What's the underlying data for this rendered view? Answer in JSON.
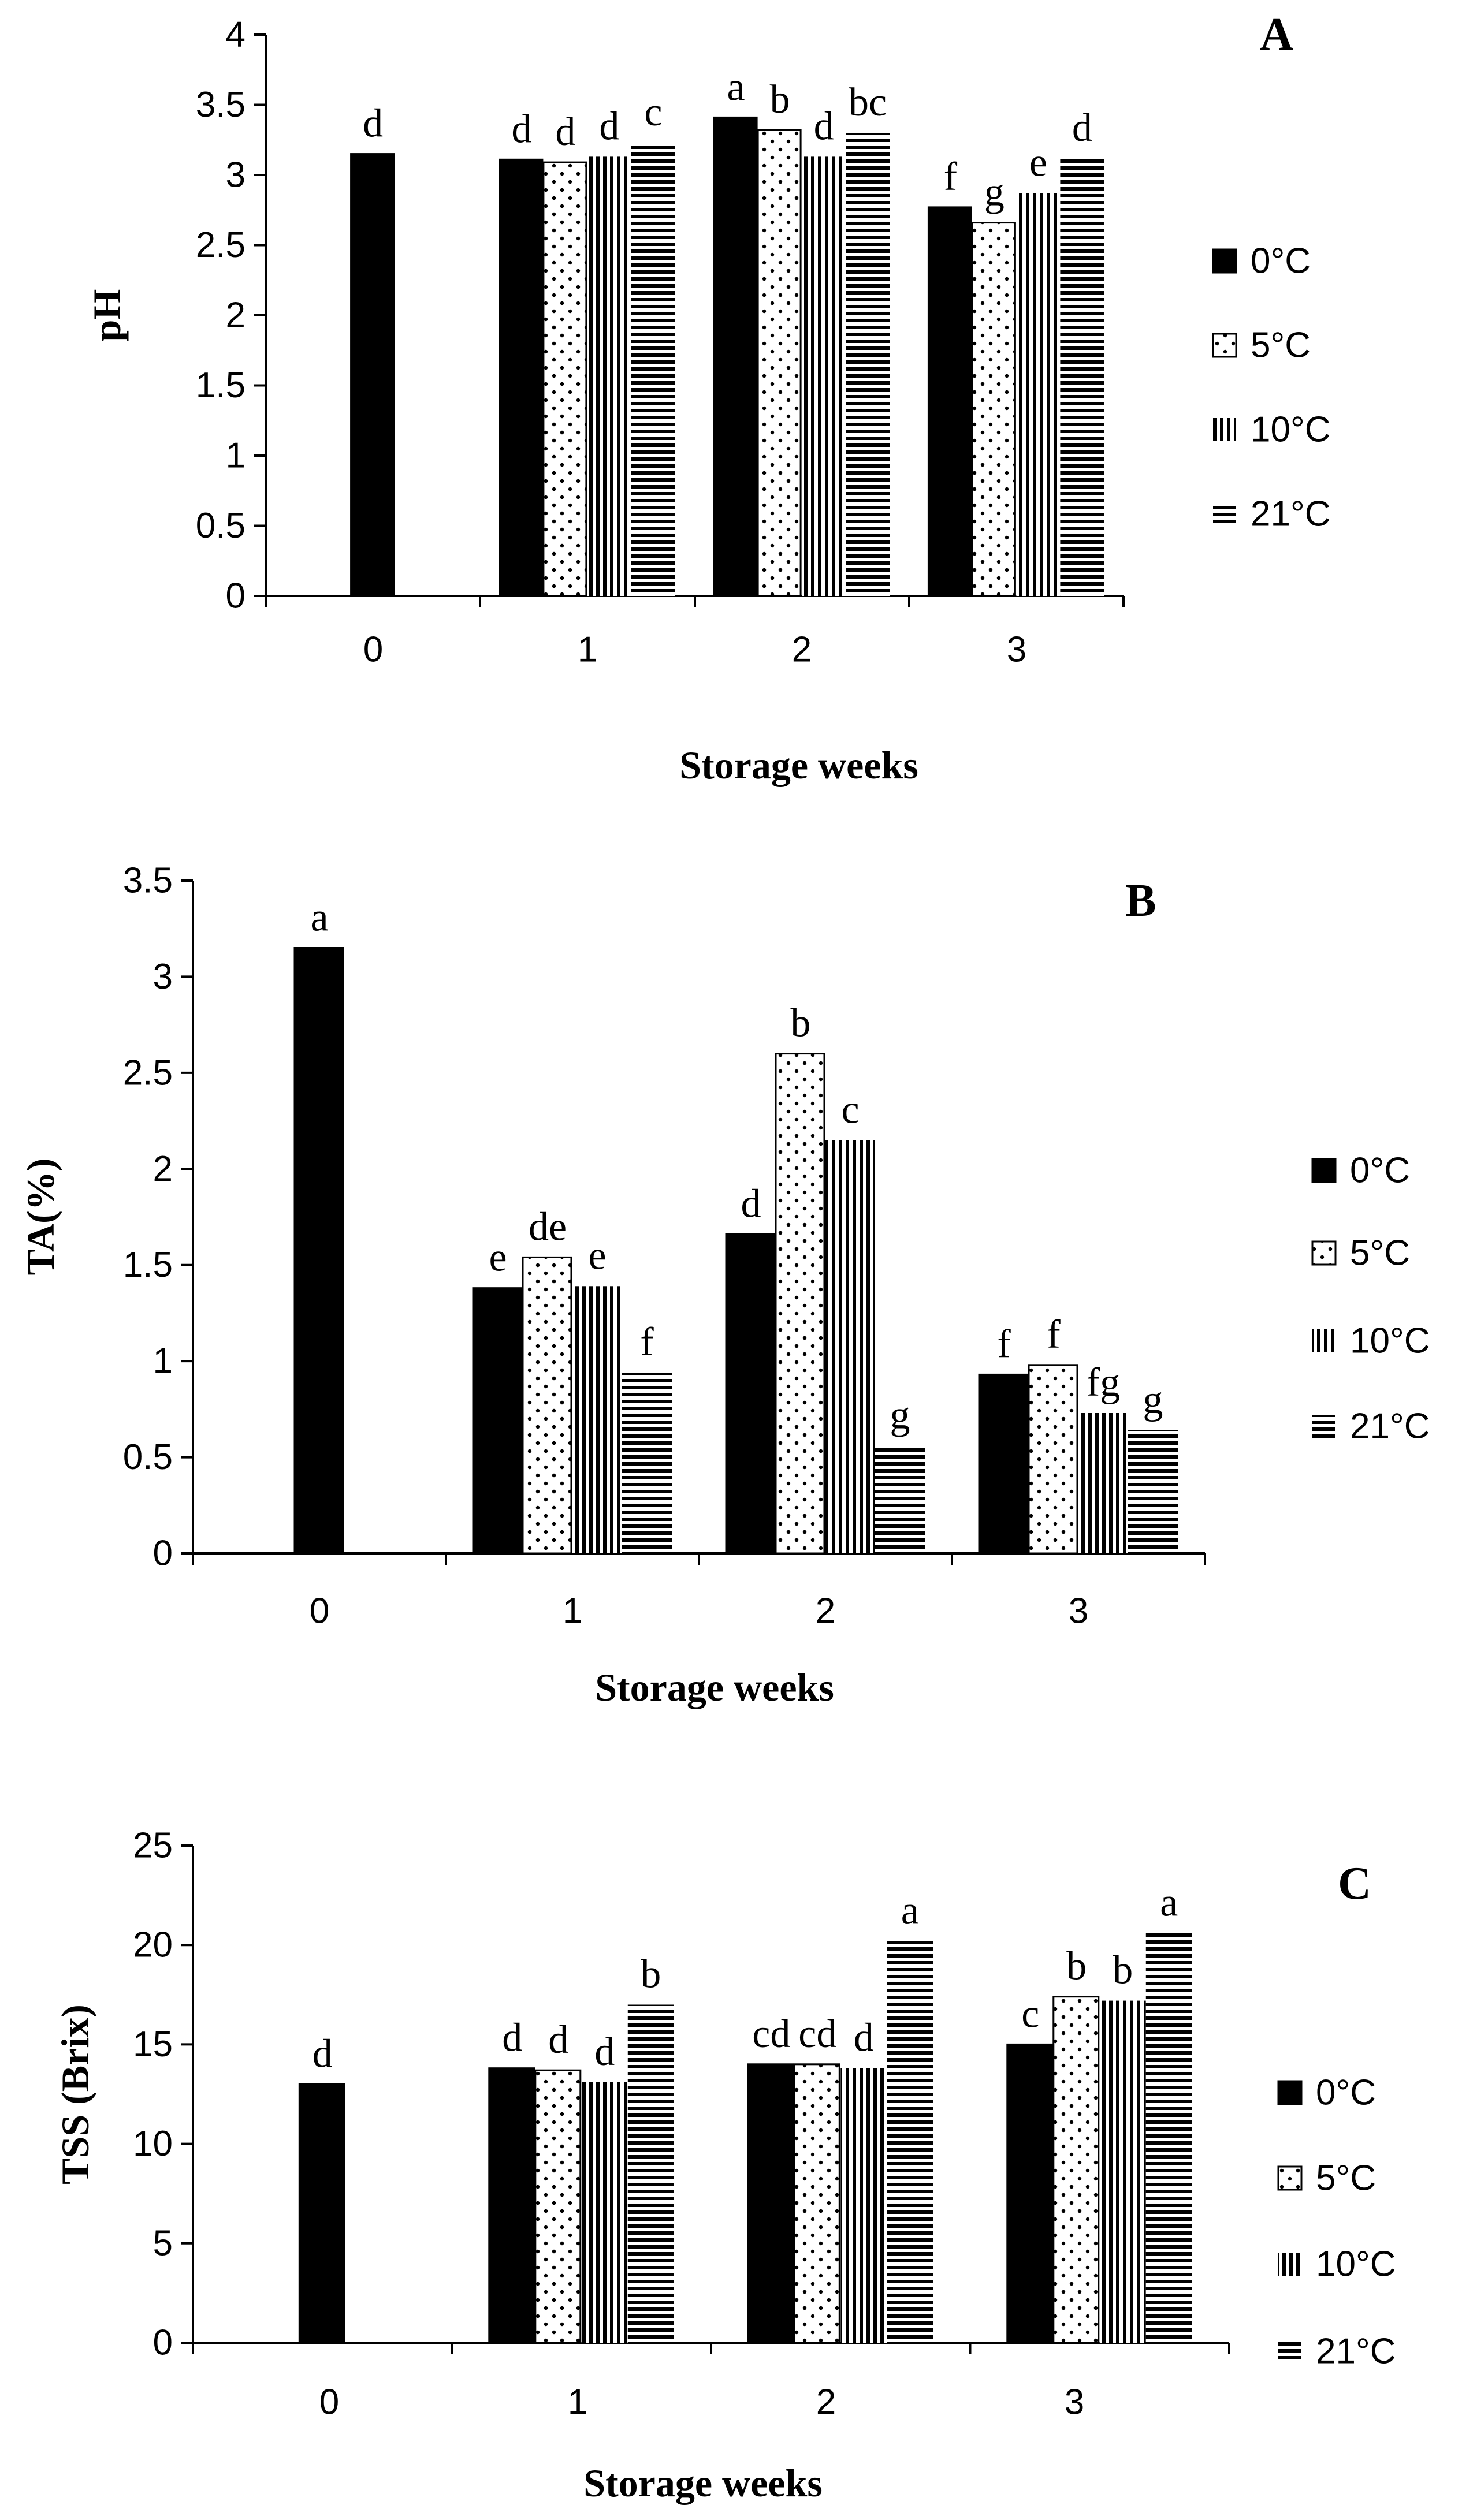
{
  "legend": [
    "0°C",
    "5°C",
    "10°C",
    "21°C"
  ],
  "chart_data": [
    {
      "type": "bar",
      "panel": "A",
      "title": "",
      "xlabel": "Storage weeks",
      "ylabel": "pH",
      "categories": [
        "0",
        "1",
        "2",
        "3"
      ],
      "ylim": [
        0,
        4
      ],
      "yticks": [
        "0",
        "0.5",
        "1",
        "1.5",
        "2",
        "2.5",
        "3",
        "3.5",
        "4"
      ],
      "series": [
        {
          "name": "0°C",
          "values": [
            3.15,
            3.11,
            3.41,
            2.77
          ],
          "letters": [
            "d",
            "d",
            "a",
            "f"
          ]
        },
        {
          "name": "5°C",
          "values": [
            null,
            3.09,
            3.32,
            2.66
          ],
          "letters": [
            "",
            "d",
            "b",
            "g"
          ]
        },
        {
          "name": "10°C",
          "values": [
            null,
            3.13,
            3.13,
            2.87
          ],
          "letters": [
            "",
            "d",
            "d",
            "e"
          ]
        },
        {
          "name": "21°C",
          "values": [
            null,
            3.23,
            3.3,
            3.12
          ],
          "letters": [
            "",
            "c",
            "bc",
            "d"
          ]
        }
      ]
    },
    {
      "type": "bar",
      "panel": "B",
      "title": "",
      "xlabel": "Storage weeks",
      "ylabel": "TA(%)",
      "categories": [
        "0",
        "1",
        "2",
        "3"
      ],
      "ylim": [
        0,
        3.5
      ],
      "yticks": [
        "0",
        "0.5",
        "1",
        "1.5",
        "2",
        "2.5",
        "3",
        "3.5"
      ],
      "series": [
        {
          "name": "0°C",
          "values": [
            3.15,
            1.38,
            1.66,
            0.93
          ],
          "letters": [
            "a",
            "e",
            "d",
            "f"
          ]
        },
        {
          "name": "5°C",
          "values": [
            null,
            1.54,
            2.6,
            0.98
          ],
          "letters": [
            "",
            "de",
            "b",
            "f"
          ]
        },
        {
          "name": "10°C",
          "values": [
            null,
            1.39,
            2.15,
            0.73
          ],
          "letters": [
            "",
            "e",
            "c",
            "fg"
          ]
        },
        {
          "name": "21°C",
          "values": [
            null,
            0.94,
            0.56,
            0.64
          ],
          "letters": [
            "",
            "f",
            "g",
            "g"
          ]
        }
      ]
    },
    {
      "type": "bar",
      "panel": "C",
      "title": "",
      "xlabel": "Storage weeks",
      "ylabel": "TSS (Brix)",
      "categories": [
        "0",
        "1",
        "2",
        "3"
      ],
      "ylim": [
        0,
        25
      ],
      "yticks": [
        "0",
        "5",
        "10",
        "15",
        "20",
        "25"
      ],
      "series": [
        {
          "name": "0°C",
          "values": [
            13.0,
            13.8,
            14.0,
            15.0
          ],
          "letters": [
            "d",
            "d",
            "cd",
            "c"
          ]
        },
        {
          "name": "5°C",
          "values": [
            null,
            13.7,
            14.0,
            17.4
          ],
          "letters": [
            "",
            "d",
            "cd",
            "b"
          ]
        },
        {
          "name": "10°C",
          "values": [
            null,
            13.1,
            13.8,
            17.2
          ],
          "letters": [
            "",
            "d",
            "d",
            "b"
          ]
        },
        {
          "name": "21°C",
          "values": [
            null,
            17.0,
            20.2,
            20.6
          ],
          "letters": [
            "",
            "b",
            "a",
            "a"
          ]
        }
      ]
    }
  ]
}
